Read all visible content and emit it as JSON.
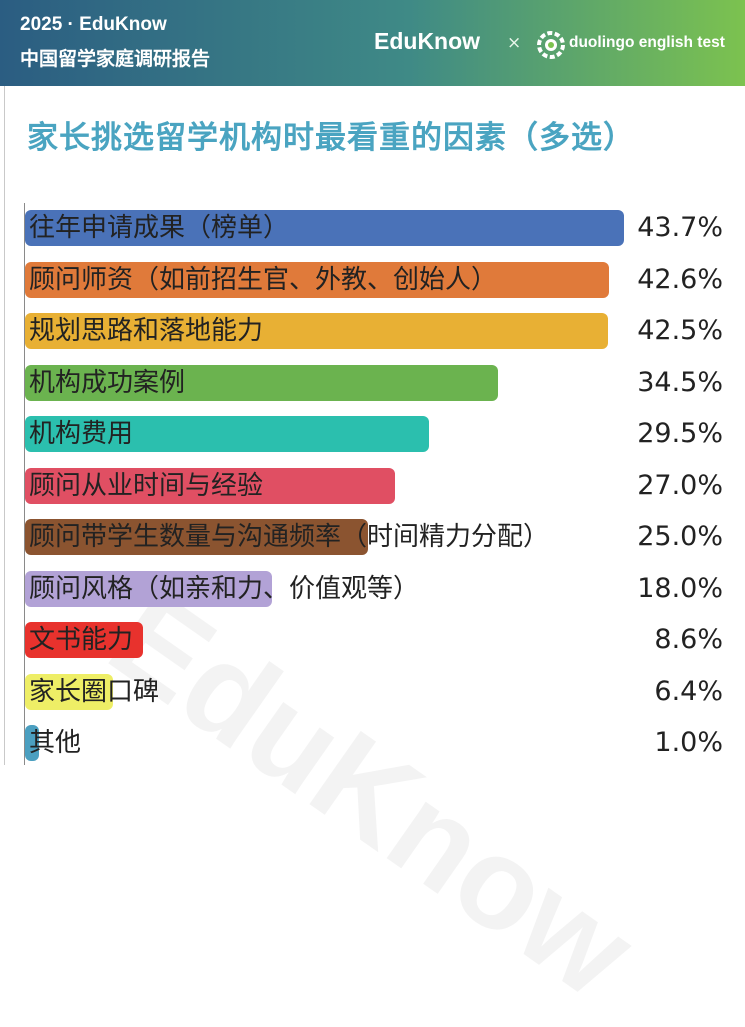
{
  "header": {
    "year_line": "2025 · EduKnow",
    "subtitle": "中国留学家庭调研报告",
    "brand": "EduKnow",
    "separator": "×",
    "partner_icon": "duolingo-owl-icon",
    "partner": "duolingo english test"
  },
  "watermark": "EduKnow",
  "colors": {
    "header_start": "#2b5d82",
    "header_end": "#7cc24f",
    "title": "#4aa4c1"
  },
  "chart_data": {
    "type": "bar",
    "orientation": "horizontal",
    "title": "家长挑选留学机构时最看重的因素（多选）",
    "categories": [
      "往年申请成果（榜单）",
      "顾问师资（如前招生官、外教、创始人）",
      "规划思路和落地能力",
      "机构成功案例",
      "机构费用",
      "顾问从业时间与经验",
      "顾问带学生数量与沟通频率（时间精力分配）",
      "顾问风格（如亲和力、价值观等）",
      "文书能力",
      "家长圈口碑",
      "其他"
    ],
    "values": [
      43.7,
      42.6,
      42.5,
      34.5,
      29.5,
      27.0,
      25.0,
      18.0,
      8.6,
      6.4,
      1.0
    ],
    "value_labels": [
      "43.7%",
      "42.6%",
      "42.5%",
      "34.5%",
      "29.5%",
      "27.0%",
      "25.0%",
      "18.0%",
      "8.6%",
      "6.4%",
      "1.0%"
    ],
    "colors": [
      "#4a72b8",
      "#e07a3a",
      "#e8b034",
      "#6bb34f",
      "#2bbfae",
      "#e04f63",
      "#8b5430",
      "#b2a2d6",
      "#e8322d",
      "#eeee66",
      "#4b9fc0"
    ],
    "xlim": [
      0,
      43.7
    ],
    "grid": false,
    "legend": "none"
  }
}
